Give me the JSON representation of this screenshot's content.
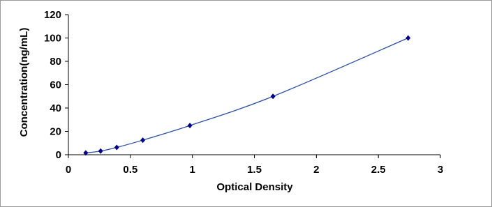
{
  "chart_data": {
    "type": "scatter",
    "x_label": "Optical Density",
    "y_label": "Concentration(ng/mL)",
    "series": [
      {
        "color": "#00008B",
        "line_color": "#2B4FA8",
        "x": [
          0.14,
          0.26,
          0.39,
          0.6,
          0.98,
          1.65,
          2.74
        ],
        "values": [
          1.56,
          3.12,
          6.25,
          12.5,
          25,
          50,
          100
        ]
      }
    ],
    "xlim": [
      0,
      3
    ],
    "xticks": [
      0,
      0.5,
      1,
      1.5,
      2,
      2.5,
      3
    ],
    "ylim": [
      0,
      120
    ],
    "yticks": [
      0,
      20,
      40,
      60,
      80,
      100,
      120
    ],
    "grid": false
  }
}
